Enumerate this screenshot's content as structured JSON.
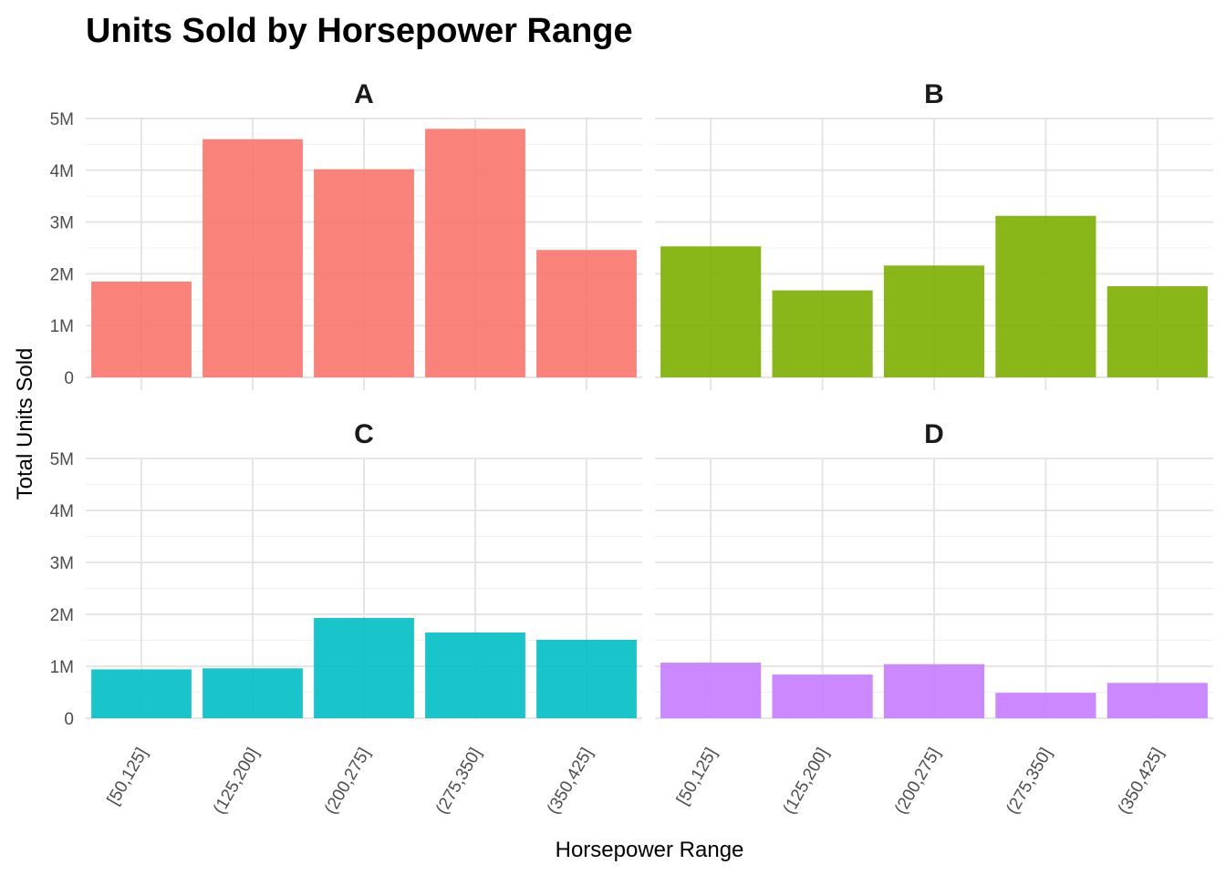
{
  "chart_data": {
    "type": "bar",
    "title": "Units Sold by Horsepower Range",
    "xlabel": "Horsepower Range",
    "ylabel": "Total Units Sold",
    "ylim": [
      0,
      5000000
    ],
    "yticks": [
      {
        "value": 0,
        "label": "0"
      },
      {
        "value": 1000000,
        "label": "1M"
      },
      {
        "value": 2000000,
        "label": "2M"
      },
      {
        "value": 3000000,
        "label": "3M"
      },
      {
        "value": 4000000,
        "label": "4M"
      },
      {
        "value": 5000000,
        "label": "5M"
      }
    ],
    "categories": [
      "[50,125]",
      "(125,200]",
      "(200,275]",
      "(275,350]",
      "(350,425]"
    ],
    "grid": true,
    "legend": "none",
    "facets": [
      {
        "name": "A",
        "color": "#F8766D",
        "values": [
          1850000,
          4600000,
          4020000,
          4800000,
          2460000
        ]
      },
      {
        "name": "B",
        "color": "#7CAE00",
        "values": [
          2530000,
          1680000,
          2160000,
          3120000,
          1760000
        ]
      },
      {
        "name": "C",
        "color": "#00BFC4",
        "values": [
          940000,
          960000,
          1930000,
          1650000,
          1510000
        ]
      },
      {
        "name": "D",
        "color": "#C77CFF",
        "values": [
          1070000,
          840000,
          1040000,
          490000,
          680000
        ]
      }
    ]
  }
}
